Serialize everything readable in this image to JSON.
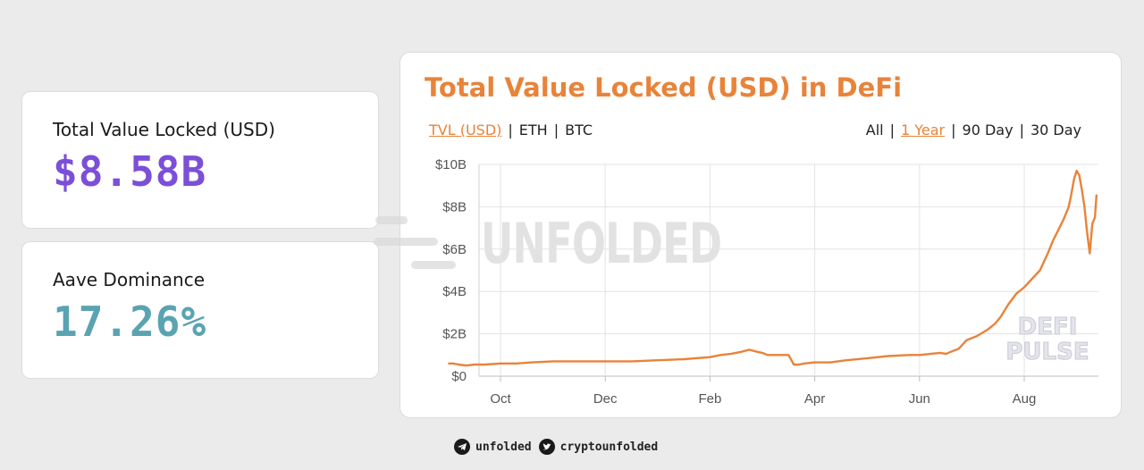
{
  "stats": {
    "tvl": {
      "label": "Total Value Locked (USD)",
      "value": "$8.58B"
    },
    "dominance": {
      "label": "Aave Dominance",
      "value": "17.26%"
    }
  },
  "chart": {
    "title": "Total Value Locked (USD) in DeFi",
    "unit_tabs": [
      "TVL (USD)",
      "ETH",
      "BTC"
    ],
    "active_unit": "TVL (USD)",
    "range_tabs": [
      "All",
      "1 Year",
      "90 Day",
      "30 Day"
    ],
    "active_range": "1 Year"
  },
  "watermark": {
    "text": "UNFOLDED",
    "pulse": [
      "DEFI",
      "PULSE"
    ]
  },
  "footer": {
    "telegram": "unfolded",
    "twitter": "cryptounfolded"
  },
  "colors": {
    "accent": "#e8833a",
    "tvl_value": "#7b4fd8",
    "dominance_value": "#5aa3b2"
  },
  "icons": {
    "telegram": "telegram-icon",
    "twitter": "twitter-icon"
  },
  "chart_data": {
    "type": "line",
    "title": "Total Value Locked (USD) in DeFi",
    "xlabel": "",
    "ylabel": "",
    "x_ticks": [
      "Oct",
      "Dec",
      "Feb",
      "Apr",
      "Jun",
      "Aug"
    ],
    "x_tick_month_index": [
      1,
      3,
      5,
      7,
      9,
      11
    ],
    "y_ticks": [
      "$0",
      "$2B",
      "$4B",
      "$6B",
      "$8B",
      "$10B"
    ],
    "ylim": [
      0,
      10
    ],
    "y_unit": "billion USD",
    "grid": true,
    "series": [
      {
        "color": "#e8833a",
        "x_month_index": [
          0.0,
          0.1,
          0.2,
          0.35,
          0.5,
          0.7,
          1.0,
          1.3,
          1.6,
          2.0,
          2.5,
          3.0,
          3.5,
          4.0,
          4.5,
          5.0,
          5.2,
          5.4,
          5.6,
          5.75,
          5.9,
          6.0,
          6.1,
          6.3,
          6.5,
          6.6,
          6.7,
          6.8,
          7.0,
          7.3,
          7.6,
          8.0,
          8.4,
          8.8,
          9.0,
          9.2,
          9.4,
          9.5,
          9.6,
          9.75,
          9.9,
          10.1,
          10.3,
          10.45,
          10.55,
          10.7,
          10.85,
          11.0,
          11.15,
          11.3,
          11.45,
          11.55,
          11.65,
          11.75,
          11.85,
          11.9,
          11.95,
          12.0,
          12.05,
          12.1,
          12.15,
          12.2,
          12.25,
          12.3,
          12.35,
          12.38
        ],
        "values": [
          0.6,
          0.6,
          0.55,
          0.5,
          0.55,
          0.55,
          0.6,
          0.6,
          0.65,
          0.7,
          0.7,
          0.7,
          0.7,
          0.75,
          0.8,
          0.9,
          1.0,
          1.05,
          1.15,
          1.25,
          1.15,
          1.1,
          1.0,
          1.0,
          1.0,
          0.55,
          0.55,
          0.6,
          0.65,
          0.65,
          0.75,
          0.85,
          0.95,
          1.0,
          1.0,
          1.05,
          1.1,
          1.05,
          1.15,
          1.3,
          1.7,
          1.9,
          2.2,
          2.5,
          2.8,
          3.4,
          3.9,
          4.2,
          4.6,
          5.0,
          5.8,
          6.4,
          6.9,
          7.4,
          8.0,
          8.6,
          9.3,
          9.7,
          9.5,
          8.8,
          8.0,
          6.8,
          5.8,
          7.2,
          7.5,
          8.58
        ]
      }
    ],
    "last_value": 8.58
  }
}
